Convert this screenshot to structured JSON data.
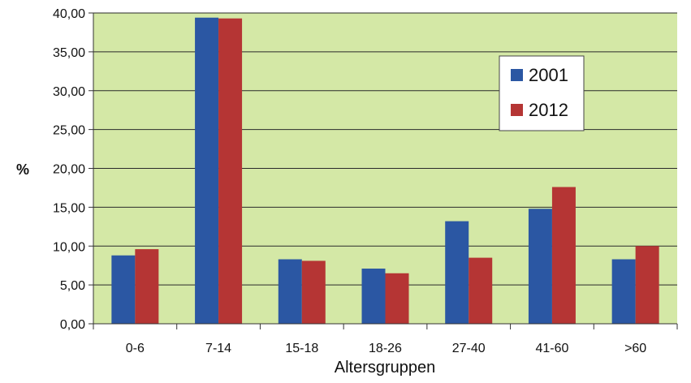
{
  "chart_data": {
    "type": "bar",
    "title": "",
    "xlabel": "Altersgruppen",
    "ylabel": "%",
    "ylim": [
      0,
      40
    ],
    "yticks": [
      "0,00",
      "5,00",
      "10,00",
      "15,00",
      "20,00",
      "25,00",
      "30,00",
      "35,00",
      "40,00"
    ],
    "categories": [
      "0-6",
      "7-14",
      "15-18",
      "18-26",
      "27-40",
      "41-60",
      ">60"
    ],
    "series": [
      {
        "name": "2001",
        "color": "#2b57a3",
        "values": [
          8.8,
          39.4,
          8.3,
          7.1,
          13.2,
          14.8,
          8.3
        ]
      },
      {
        "name": "2012",
        "color": "#b53534",
        "values": [
          9.6,
          39.3,
          8.1,
          6.5,
          8.5,
          17.6,
          10.0
        ]
      }
    ],
    "grid": true,
    "legend_position": "top-right",
    "background_color": "#d4e8a6"
  }
}
